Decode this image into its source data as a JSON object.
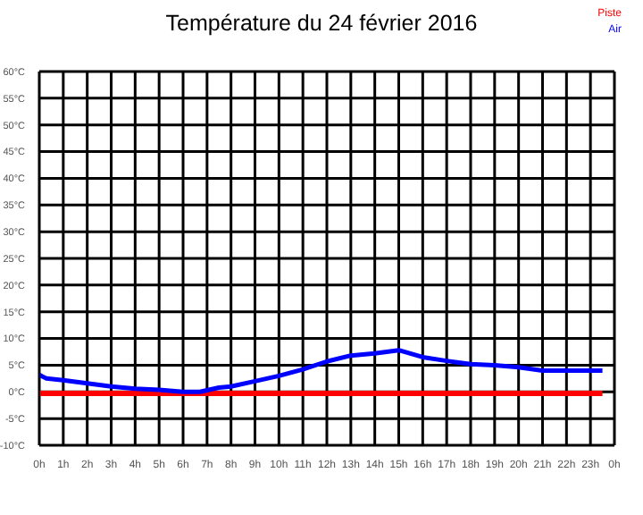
{
  "chart_data": {
    "type": "line",
    "title": "Température du 24 février 2016",
    "xlim": [
      "2016-02-24T00:00",
      "2016-02-25T00:00"
    ],
    "xticks": [
      {
        "value": "2016-02-24T00:00",
        "label": "0h"
      },
      {
        "value": "2016-02-24T01:00",
        "label": "1h"
      },
      {
        "value": "2016-02-24T02:00",
        "label": "2h"
      },
      {
        "value": "2016-02-24T03:00",
        "label": "3h"
      },
      {
        "value": "2016-02-24T04:00",
        "label": "4h"
      },
      {
        "value": "2016-02-24T05:00",
        "label": "5h"
      },
      {
        "value": "2016-02-24T06:00",
        "label": "6h"
      },
      {
        "value": "2016-02-24T07:00",
        "label": "7h"
      },
      {
        "value": "2016-02-24T08:00",
        "label": "8h"
      },
      {
        "value": "2016-02-24T09:00",
        "label": "9h"
      },
      {
        "value": "2016-02-24T10:00",
        "label": "10h"
      },
      {
        "value": "2016-02-24T11:00",
        "label": "11h"
      },
      {
        "value": "2016-02-24T12:00",
        "label": "12h"
      },
      {
        "value": "2016-02-24T13:00",
        "label": "13h"
      },
      {
        "value": "2016-02-24T14:00",
        "label": "14h"
      },
      {
        "value": "2016-02-24T15:00",
        "label": "15h"
      },
      {
        "value": "2016-02-24T16:00",
        "label": "16h"
      },
      {
        "value": "2016-02-24T17:00",
        "label": "17h"
      },
      {
        "value": "2016-02-24T18:00",
        "label": "18h"
      },
      {
        "value": "2016-02-24T19:00",
        "label": "19h"
      },
      {
        "value": "2016-02-24T20:00",
        "label": "20h"
      },
      {
        "value": "2016-02-24T21:00",
        "label": "21h"
      },
      {
        "value": "2016-02-24T22:00",
        "label": "22h"
      },
      {
        "value": "2016-02-24T23:00",
        "label": "23h"
      },
      {
        "value": "2016-02-25T00:00",
        "label": "0h"
      }
    ],
    "ylim": [
      -10,
      60
    ],
    "yticks": [
      {
        "value": -10,
        "label": "-10°C"
      },
      {
        "value": -5,
        "label": "-5°C"
      },
      {
        "value": 0,
        "label": "0°C"
      },
      {
        "value": 5,
        "label": "5°C"
      },
      {
        "value": 10,
        "label": "10°C"
      },
      {
        "value": 15,
        "label": "15°C"
      },
      {
        "value": 20,
        "label": "20°C"
      },
      {
        "value": 25,
        "label": "25°C"
      },
      {
        "value": 30,
        "label": "30°C"
      },
      {
        "value": 35,
        "label": "35°C"
      },
      {
        "value": 40,
        "label": "40°C"
      },
      {
        "value": 45,
        "label": "45°C"
      },
      {
        "value": 50,
        "label": "50°C"
      },
      {
        "value": 55,
        "label": "55°C"
      },
      {
        "value": 60,
        "label": "60°C"
      }
    ],
    "grid": true,
    "legend": "top right",
    "marker": "none",
    "series": [
      {
        "name": "Piste",
        "color": "#ff0000",
        "x": [
          "2016-02-24T00:00",
          "2016-02-24T23:30"
        ],
        "values": [
          -0.3,
          -0.3
        ]
      },
      {
        "name": "Air",
        "color": "#0000ff",
        "x": [
          "2016-02-24T00:00",
          "2016-02-24T00:18",
          "2016-02-24T01:00",
          "2016-02-24T02:00",
          "2016-02-24T03:00",
          "2016-02-24T04:00",
          "2016-02-24T05:00",
          "2016-02-24T06:00",
          "2016-02-24T06:42",
          "2016-02-24T07:30",
          "2016-02-24T08:00",
          "2016-02-24T09:00",
          "2016-02-24T10:00",
          "2016-02-24T11:00",
          "2016-02-24T12:00",
          "2016-02-24T13:00",
          "2016-02-24T14:00",
          "2016-02-24T15:00",
          "2016-02-24T16:00",
          "2016-02-24T17:00",
          "2016-02-24T18:00",
          "2016-02-24T19:00",
          "2016-02-24T20:00",
          "2016-02-24T21:00",
          "2016-02-24T22:00",
          "2016-02-24T23:30"
        ],
        "values": [
          3.2,
          2.5,
          2.2,
          1.6,
          1.0,
          0.6,
          0.4,
          0.0,
          0.0,
          0.8,
          1.0,
          2.0,
          3.0,
          4.2,
          5.7,
          6.8,
          7.2,
          7.8,
          6.5,
          5.8,
          5.2,
          5.0,
          4.6,
          4.0,
          4.0,
          4.0
        ]
      }
    ]
  }
}
